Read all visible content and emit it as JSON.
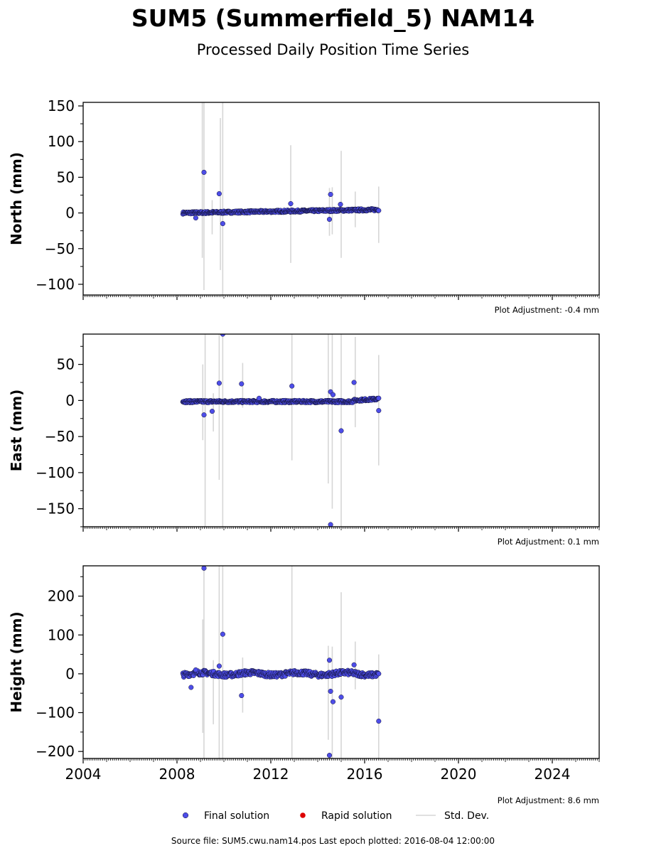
{
  "title": "SUM5 (Summerfield_5) NAM14",
  "subtitle": "Processed Daily Position Time Series",
  "source_text": "Source file: SUM5.cwu.nam14.pos  Last epoch plotted: 2016-08-04 12:00:00",
  "colors": {
    "final": "#4d4de8",
    "rapid": "#dd0000",
    "stddev": "#d6d6d6"
  },
  "chart_data": {
    "type": "scatter",
    "xlim": [
      2004,
      2026
    ],
    "x_ticks": [
      "2004",
      "2008",
      "2012",
      "2016",
      "2020",
      "2024"
    ],
    "legend": {
      "placement": "bottom-center",
      "entries": [
        "Final solution",
        "Rapid solution",
        "Std. Dev."
      ]
    },
    "panels": [
      {
        "ylabel": "North (mm)",
        "ylim": [
          -115,
          155
        ],
        "y_ticks": [
          150,
          100,
          50,
          0,
          -50,
          -100
        ],
        "adjustment": "Plot Adjustment: -0.4 mm",
        "noise": 1.5,
        "outliers": [
          [
            2009.15,
            57
          ],
          [
            2009.8,
            27
          ],
          [
            2009.95,
            -15
          ],
          [
            2012.85,
            13
          ],
          [
            2014.55,
            26
          ],
          [
            2014.5,
            -9
          ],
          [
            2014.97,
            12
          ],
          [
            2008.8,
            -7
          ]
        ],
        "errorbars": [
          [
            2009.08,
            -63,
            155
          ],
          [
            2009.15,
            -108,
            155
          ],
          [
            2009.5,
            -30,
            18
          ],
          [
            2009.85,
            -80,
            133
          ],
          [
            2009.95,
            -115,
            155
          ],
          [
            2012.85,
            -70,
            95
          ],
          [
            2014.5,
            -32,
            35
          ],
          [
            2014.62,
            -30,
            36
          ],
          [
            2015.0,
            -63,
            87
          ],
          [
            2015.6,
            -20,
            30
          ],
          [
            2016.6,
            -42,
            37
          ]
        ]
      },
      {
        "ylabel": "East (mm)",
        "ylim": [
          -175,
          92
        ],
        "y_ticks": [
          50,
          0,
          -50,
          -100,
          -150
        ],
        "adjustment": "Plot Adjustment: 0.1 mm",
        "noise": 1.5,
        "outliers": [
          [
            2009.15,
            -20
          ],
          [
            2009.5,
            -15
          ],
          [
            2009.8,
            24
          ],
          [
            2009.95,
            92
          ],
          [
            2010.75,
            23
          ],
          [
            2011.5,
            3
          ],
          [
            2012.9,
            20
          ],
          [
            2014.55,
            12
          ],
          [
            2014.65,
            8
          ],
          [
            2014.55,
            -172
          ],
          [
            2015.0,
            -42
          ],
          [
            2015.55,
            25
          ],
          [
            2016.6,
            -14
          ]
        ],
        "errorbars": [
          [
            2009.1,
            -55,
            50
          ],
          [
            2009.2,
            -175,
            92
          ],
          [
            2009.55,
            -43,
            10
          ],
          [
            2009.8,
            -110,
            92
          ],
          [
            2009.95,
            -175,
            92
          ],
          [
            2010.8,
            -10,
            52
          ],
          [
            2012.9,
            -83,
            92
          ],
          [
            2014.45,
            -115,
            92
          ],
          [
            2014.62,
            -150,
            92
          ],
          [
            2015.0,
            -175,
            92
          ],
          [
            2015.6,
            -37,
            88
          ],
          [
            2016.6,
            -90,
            63
          ]
        ]
      },
      {
        "ylabel": "Height (mm)",
        "ylim": [
          -218,
          278
        ],
        "y_ticks": [
          200,
          100,
          0,
          -100,
          -200
        ],
        "adjustment": "Plot Adjustment: 8.6 mm",
        "noise": 6,
        "outliers": [
          [
            2009.15,
            272
          ],
          [
            2009.8,
            20
          ],
          [
            2009.95,
            102
          ],
          [
            2008.6,
            -35
          ],
          [
            2008.8,
            10
          ],
          [
            2010.75,
            -56
          ],
          [
            2014.5,
            35
          ],
          [
            2014.55,
            -45
          ],
          [
            2014.65,
            -72
          ],
          [
            2014.5,
            -210
          ],
          [
            2015.0,
            -60
          ],
          [
            2015.55,
            23
          ],
          [
            2016.6,
            -122
          ]
        ],
        "errorbars": [
          [
            2009.1,
            -152,
            140
          ],
          [
            2009.15,
            -218,
            278
          ],
          [
            2009.55,
            -130,
            35
          ],
          [
            2009.8,
            -218,
            278
          ],
          [
            2009.95,
            -218,
            278
          ],
          [
            2010.8,
            -100,
            42
          ],
          [
            2012.9,
            -218,
            278
          ],
          [
            2014.45,
            -170,
            72
          ],
          [
            2014.62,
            -218,
            70
          ],
          [
            2015.0,
            -218,
            210
          ],
          [
            2015.6,
            -40,
            83
          ],
          [
            2016.6,
            -218,
            50
          ]
        ]
      }
    ],
    "series_range": [
      2008.25,
      2016.6
    ]
  }
}
